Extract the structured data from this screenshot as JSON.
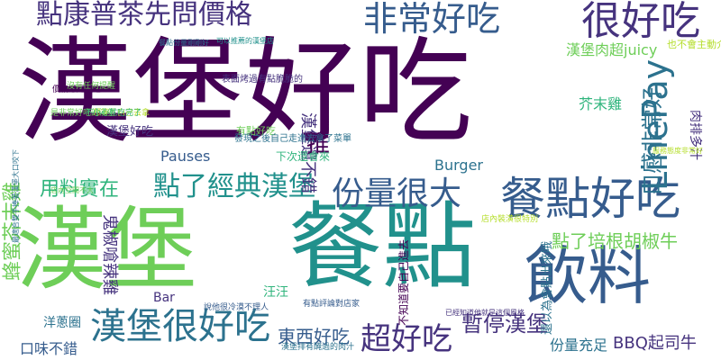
{
  "palette": {
    "purple": "#440154",
    "indigo": "#46337e",
    "blue": "#365c8d",
    "steel": "#2c728e",
    "teal": "#21918c",
    "green": "#2fb47c",
    "lime": "#6ece58",
    "yellow_green": "#b5de2b"
  },
  "words": [
    {
      "text": "漢堡好吃",
      "color": "#440154"
    },
    {
      "text": "漢堡",
      "color": "#6ece58"
    },
    {
      "text": "餐點",
      "color": "#21918c"
    },
    {
      "text": "飲料",
      "color": "#365c8d"
    },
    {
      "text": "點康普茶先問價格",
      "color": "#46337e"
    },
    {
      "text": "非常好吃",
      "color": "#365c8d"
    },
    {
      "text": "很好吃",
      "color": "#46337e"
    },
    {
      "text": "餐點好吃",
      "color": "#365c8d"
    },
    {
      "text": "份量很大",
      "color": "#365c8d"
    },
    {
      "text": "點了經典漢堡",
      "color": "#21918c"
    },
    {
      "text": "漢堡很好吃",
      "color": "#2c728e"
    },
    {
      "text": "超好吃",
      "color": "#46337e"
    },
    {
      "text": "LinePay",
      "color": "#2c728e"
    },
    {
      "text": "口感非常好",
      "color": "#2c728e"
    },
    {
      "text": "漢堡還不錯",
      "color": "#46337e"
    },
    {
      "text": "推",
      "color": "#440154"
    },
    {
      "text": "點了培根胡椒牛",
      "color": "#6ece58"
    },
    {
      "text": "用料實在",
      "color": "#2fb47c"
    },
    {
      "text": "蜂蜜芥末雞",
      "color": "#6ece58"
    },
    {
      "text": "暫停漢堡",
      "color": "#46337e"
    },
    {
      "text": "東西好吃",
      "color": "#365c8d"
    },
    {
      "text": "BBQ起司牛",
      "color": "#46337e"
    },
    {
      "text": "份量充足",
      "color": "#2c728e"
    },
    {
      "text": "口味不錯",
      "color": "#365c8d"
    },
    {
      "text": "漢堡肉超juicy",
      "color": "#6ece58"
    },
    {
      "text": "芥末雞",
      "color": "#2fb47c"
    },
    {
      "text": "鬼椒嗆辣雞",
      "color": "#46337e"
    },
    {
      "text": "Pauses",
      "color": "#365c8d"
    },
    {
      "text": "Burger",
      "color": "#2c728e"
    },
    {
      "text": "Bar",
      "color": "#46337e"
    },
    {
      "text": "洋蔥圈",
      "color": "#2c728e"
    },
    {
      "text": "肉排多汁",
      "color": "#46337e"
    },
    {
      "text": "下次還會來",
      "color": "#2fb47c"
    },
    {
      "text": "汪汪",
      "color": "#2fb47c"
    },
    {
      "text": "漢堡好吃",
      "color": "#46337e"
    },
    {
      "text": "還以為會點出來哦",
      "color": "#2c728e"
    },
    {
      "text": "不知道要自己進去",
      "color": "#440154"
    },
    {
      "text": "有點好吃",
      "color": "#6ece58"
    },
    {
      "text": "也不會主動介紹",
      "color": "#b5de2b"
    },
    {
      "text": "發現之後自己走進去拿了菜單",
      "color": "#2c728e"
    },
    {
      "text": "表面烤過有點脆脆的",
      "color": "#46337e"
    },
    {
      "text": "不想等就自己去拿",
      "color": "#b5de2b"
    },
    {
      "text": "價格還是蠻吃",
      "color": "#440154"
    },
    {
      "text": "最適合雙手捧著漢堡大口咬下",
      "color": "#2c728e"
    },
    {
      "text": "有點評論對店家",
      "color": "#365c8d"
    },
    {
      "text": "已經知道他就是這個風格",
      "color": "#46337e"
    },
    {
      "text": "店內裝潢很特別",
      "color": "#b5de2b"
    },
    {
      "text": "沒有任何提醒",
      "color": "#6ece58"
    },
    {
      "text": "說他很冷漠不理人",
      "color": "#365c8d"
    },
    {
      "text": "漢堡排有醃過的肉汁",
      "color": "#2c728e"
    },
    {
      "text": "是非常好吃的漢堡",
      "color": "#6ece58"
    },
    {
      "text": "不小心就吃完了",
      "color": "#2fb47c"
    },
    {
      "text": "可以推薦的漢堡店",
      "color": "#21918c"
    },
    {
      "text": "服務態度非常好",
      "color": "#b5de2b"
    },
    {
      "text": "店內空間不大",
      "color": "#6ece58"
    },
    {
      "text": "餐點份量剛剛好",
      "color": "#2c728e"
    }
  ]
}
